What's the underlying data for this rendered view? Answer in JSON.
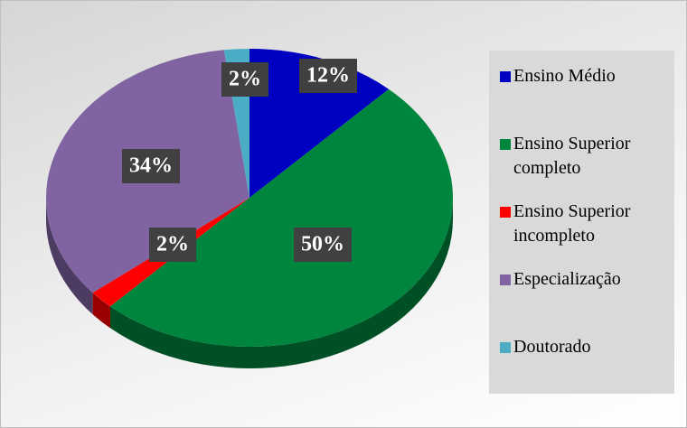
{
  "chart_data": {
    "type": "pie",
    "categories": [
      "Ensino Médio",
      "Ensino Superior completo",
      "Ensino Superior incompleto",
      "Especialização",
      "Doutorado"
    ],
    "values": [
      12,
      50,
      2,
      34,
      2
    ],
    "value_labels": [
      "12%",
      "50%",
      "2%",
      "34%",
      "2%"
    ],
    "colors": [
      "#0000c0",
      "#00853f",
      "#ff0000",
      "#8064a2",
      "#4bacc6"
    ],
    "legend": "right"
  }
}
